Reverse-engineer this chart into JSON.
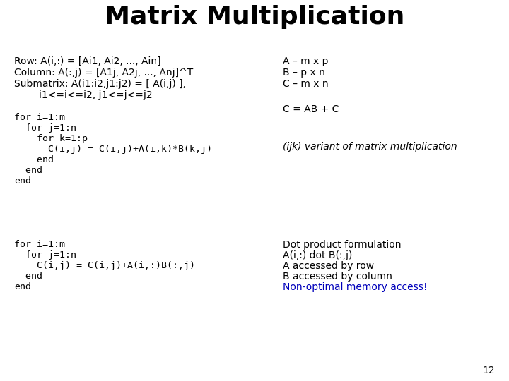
{
  "title": "Matrix Multiplication",
  "bg_color": "#ffffff",
  "title_color": "#000000",
  "title_fontsize": 26,
  "title_fontweight": "bold",
  "left_row": "Row: A(i,:) = [Ai1, Ai2, ..., Ain]",
  "left_col": "Column: A(:,j) = [A1j, A2j, ..., Anj]^T",
  "left_sub1": "Submatrix: A(i1:i2,j1:j2) = [ A(i,j) ],",
  "left_sub2": "        i1<=i<=i2, j1<=j<=j2",
  "right_abc": [
    "A – m x p",
    "B – p x n",
    "C – m x n"
  ],
  "right_eq": "C = AB + C",
  "code1_lines": [
    "for i=1:m",
    "  for j=1:n",
    "    for k=1:p",
    "      C(i,j) = C(i,j)+A(i,k)*B(k,j)",
    "    end",
    "  end",
    "end"
  ],
  "ijk_text": "(ijk) variant of matrix multiplication",
  "code2_lines": [
    "for i=1:m",
    "  for j=1:n",
    "    C(i,j) = C(i,j)+A(i,:)B(:,j)",
    "  end",
    "end"
  ],
  "dot_lines": [
    {
      "text": "Dot product formulation",
      "color": "#000000"
    },
    {
      "text": "A(i,:) dot B(:,j)",
      "color": "#000000"
    },
    {
      "text": "A accessed by row",
      "color": "#000000"
    },
    {
      "text": "B accessed by column",
      "color": "#000000"
    },
    {
      "text": "Non-optimal memory access!",
      "color": "#0000bb"
    }
  ],
  "page_num": "12",
  "mono_font": "monospace",
  "sans_font": "DejaVu Sans"
}
